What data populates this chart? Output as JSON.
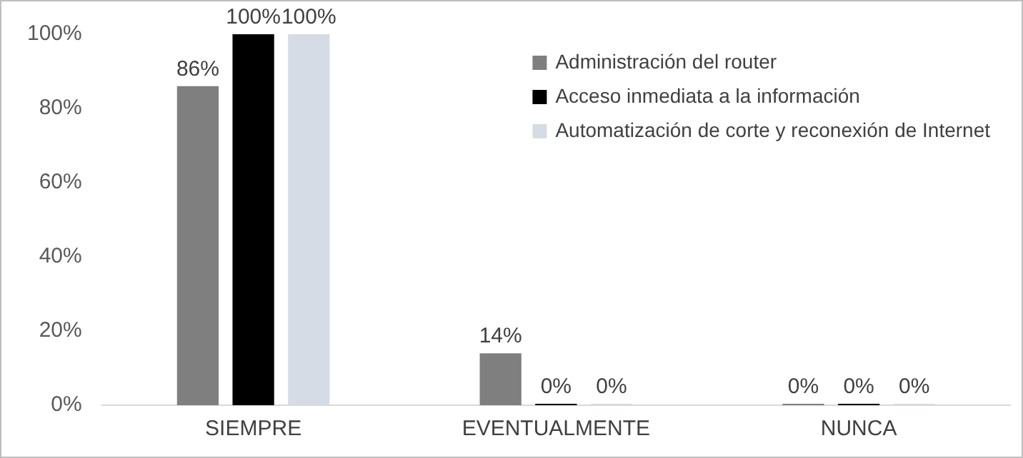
{
  "chart_data": {
    "type": "bar",
    "categories": [
      "SIEMPRE",
      "EVENTUALMENTE",
      "NUNCA"
    ],
    "series": [
      {
        "name": "Administración del router",
        "color": "#7f7f7f",
        "values": [
          86,
          14,
          0
        ],
        "value_labels": [
          "86%",
          "14%",
          "0%"
        ]
      },
      {
        "name": "Acceso inmediata a la información",
        "color": "#000000",
        "values": [
          100,
          0,
          0
        ],
        "value_labels": [
          "100%",
          "0%",
          "0%"
        ]
      },
      {
        "name": "Automatización de corte y reconexión de Internet",
        "color": "#d6dce5",
        "values": [
          100,
          0,
          0
        ],
        "value_labels": [
          "100%",
          "0%",
          "0%"
        ]
      }
    ],
    "ylim": [
      0,
      100
    ],
    "yticks": [
      {
        "value": 0,
        "label": "0%"
      },
      {
        "value": 20,
        "label": "20%"
      },
      {
        "value": 40,
        "label": "40%"
      },
      {
        "value": 60,
        "label": "60%"
      },
      {
        "value": 80,
        "label": "80%"
      },
      {
        "value": 100,
        "label": "100%"
      }
    ],
    "grid": false,
    "legend": "top right"
  }
}
